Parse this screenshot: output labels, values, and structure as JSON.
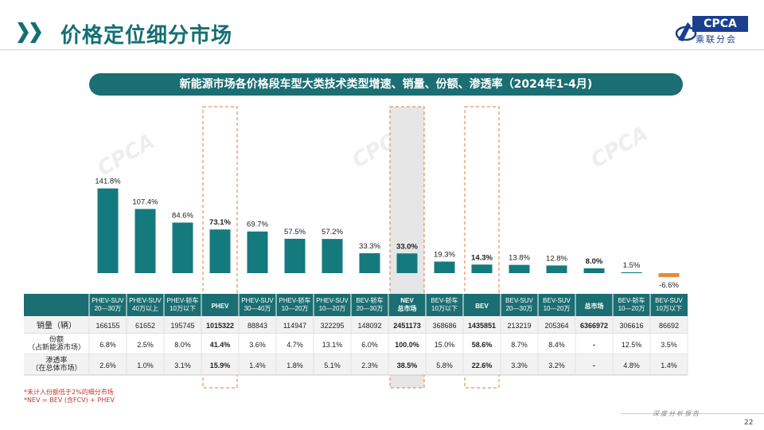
{
  "title": "价格定位细分市场",
  "logo": {
    "text": "CPCA",
    "sub": "乘联分会"
  },
  "banner": "新能源市场各价格段车型大类技术类型增速、销量、份额、渗透率（2024年1-4月)",
  "watermark": "CPCA",
  "colors": {
    "primary": "#146f73",
    "bar": "#147a7e",
    "negative": "#e58a3a",
    "header_cell": "#1b6e72",
    "highlight": "#e07b3a"
  },
  "chart_data": {
    "type": "bar",
    "categories": [
      "PHEV-SUV 20—30万",
      "PHEV-SUV 40万以上",
      "PHEV-轿车 10万以下",
      "PHEV",
      "PHEV-SUV 30—40万",
      "PHEV-轿车 10—20万",
      "PHEV-SUV 10—20万",
      "BEV-轿车 20—30万",
      "NEV 总市场",
      "BEV-轿车 10万以下",
      "BEV",
      "BEV-SUV 20—30万",
      "BEV-SUV 10—20万",
      "总市场",
      "BEV-轿车 10—20万",
      "BEV-SUV 10万以下"
    ],
    "values": [
      141.8,
      107.4,
      84.6,
      73.1,
      69.7,
      57.5,
      57.2,
      33.3,
      33.0,
      19.3,
      14.3,
      13.8,
      12.8,
      8.0,
      1.5,
      -6.6
    ],
    "value_labels": [
      "141.8%",
      "107.4%",
      "84.6%",
      "73.1%",
      "69.7%",
      "57.5%",
      "57.2%",
      "33.3%",
      "33.0%",
      "19.3%",
      "14.3%",
      "13.8%",
      "12.8%",
      "8.0%",
      "1.5%",
      "-6.6%"
    ],
    "unit": "%",
    "highlighted": [
      3,
      8,
      10,
      13
    ],
    "boxed_columns": [
      3,
      8,
      10
    ],
    "table": {
      "headers": [
        [
          "PHEV-SUV",
          "20—30万"
        ],
        [
          "PHEV-SUV",
          "40万以上"
        ],
        [
          "PHEV-轿车",
          "10万以下"
        ],
        [
          "PHEV"
        ],
        [
          "PHEV-SUV",
          "30—40万"
        ],
        [
          "PHEV-轿车",
          "10—20万"
        ],
        [
          "PHEV-SUV",
          "10—20万"
        ],
        [
          "BEV-轿车",
          "20—30万"
        ],
        [
          "NEV",
          "总市场"
        ],
        [
          "BEV-轿车",
          "10万以下"
        ],
        [
          "BEV"
        ],
        [
          "BEV-SUV",
          "20—30万"
        ],
        [
          "BEV-SUV",
          "10—20万"
        ],
        [
          "总市场"
        ],
        [
          "BEV-轿车",
          "10—20万"
        ],
        [
          "BEV-SUV",
          "10万以下"
        ]
      ],
      "rows": [
        {
          "label": [
            "销量（辆）"
          ],
          "values": [
            "166155",
            "61652",
            "195745",
            "1015322",
            "88843",
            "114947",
            "322295",
            "148092",
            "2451173",
            "368686",
            "1435851",
            "213219",
            "205364",
            "6366972",
            "306616",
            "86692"
          ]
        },
        {
          "label": [
            "份额",
            "（占新能源市场）"
          ],
          "values": [
            "6.8%",
            "2.5%",
            "8.0%",
            "41.4%",
            "3.6%",
            "4.7%",
            "13.1%",
            "6.0%",
            "100.0%",
            "15.0%",
            "58.6%",
            "8.7%",
            "8.4%",
            "-",
            "12.5%",
            "3.5%"
          ]
        },
        {
          "label": [
            "渗透率",
            "（在总体市场）"
          ],
          "values": [
            "2.6%",
            "1.0%",
            "3.1%",
            "15.9%",
            "1.4%",
            "1.8%",
            "5.1%",
            "2.3%",
            "38.5%",
            "5.8%",
            "22.6%",
            "3.3%",
            "3.2%",
            "-",
            "4.8%",
            "1.4%"
          ]
        }
      ]
    }
  },
  "footnotes": [
    "*未计入份额低于2%的细分市场",
    "*NEV = BEV (含FCV) + PHEV"
  ],
  "footer_brand": "深度分析报告",
  "page_number": "22"
}
